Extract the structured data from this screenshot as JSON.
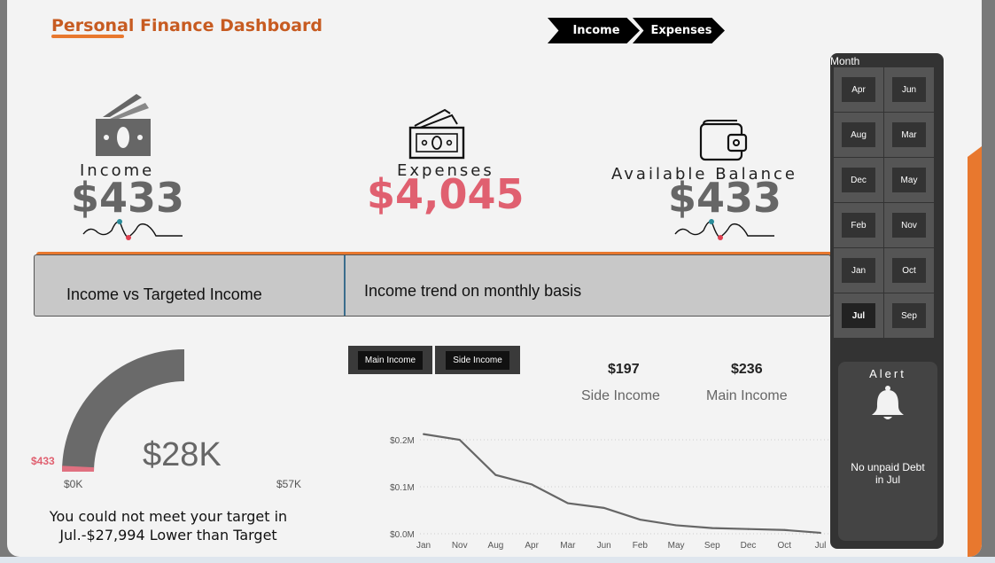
{
  "header": {
    "title": "Personal Finance Dashboard"
  },
  "nav": {
    "income_label": "Income",
    "expenses_label": "Expenses"
  },
  "kpis": {
    "income": {
      "label": "Income",
      "value": "$433"
    },
    "expenses": {
      "label": "Expenses",
      "value": "$4,045"
    },
    "balance": {
      "label": "Available Balance",
      "value": "$433"
    }
  },
  "panels": {
    "left_title": "Income vs Targeted Income",
    "right_title": "Income trend on monthly basis"
  },
  "gauge": {
    "center_value": "$28K",
    "current_value": "$433",
    "min_label": "$0K",
    "max_label": "$57K",
    "fraction": 0.0076
  },
  "target_message": {
    "line1": "You could not meet your target in",
    "line2": "Jul.-$27,994 Lower than Target"
  },
  "income_tabs": {
    "main": "Main Income",
    "side": "Side Income"
  },
  "income_stats": {
    "side": {
      "value": "$197",
      "label": "Side Income"
    },
    "main": {
      "value": "$236",
      "label": "Main Income"
    }
  },
  "chart_data": {
    "type": "line",
    "categories": [
      "Jan",
      "Nov",
      "Aug",
      "Apr",
      "Mar",
      "Jun",
      "Feb",
      "May",
      "Sep",
      "Dec",
      "Oct",
      "Jul"
    ],
    "series": [
      {
        "values": [
          0.212,
          0.2,
          0.125,
          0.105,
          0.065,
          0.055,
          0.03,
          0.018,
          0.012,
          0.01,
          0.008,
          0.002
        ]
      }
    ],
    "ytick_labels": [
      "$0.0M",
      "$0.1M",
      "$0.2M"
    ],
    "ylim": [
      0,
      0.2
    ],
    "grid": true,
    "colors": {
      "line": "#666666",
      "grid": "#cccccc"
    }
  },
  "month_slicer": {
    "title": "Month",
    "items": [
      "Apr",
      "Jun",
      "Aug",
      "Mar",
      "Dec",
      "May",
      "Feb",
      "Nov",
      "Jan",
      "Oct",
      "Jul",
      "Sep"
    ],
    "selected": "Jul"
  },
  "alert": {
    "title": "Alert",
    "line1": "No unpaid Debt",
    "line2": "in Jul"
  },
  "colors": {
    "accent": "#e8782e",
    "title": "#c75b21",
    "expense": "#e06070",
    "dot_teal": "#2a8c9a",
    "dot_red": "#e04050"
  }
}
